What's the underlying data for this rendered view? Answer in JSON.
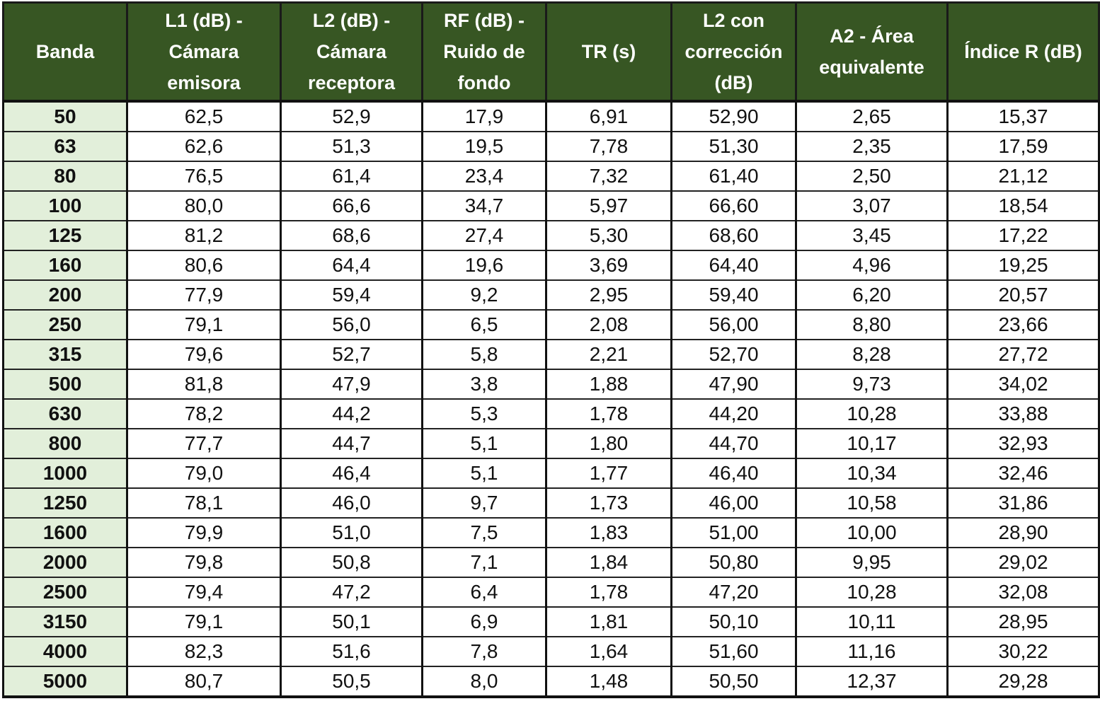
{
  "columns": [
    "Banda",
    "L1 (dB) -\nCámara\nemisora",
    "L2 (dB) -\nCámara\nreceptora",
    "RF (dB) -\nRuido de\nfondo",
    "TR (s)",
    "L2 con\ncorrección\n(dB)",
    "A2 - Área\nequivalente",
    "Índice R (dB)"
  ],
  "rows": [
    [
      "50",
      "62,5",
      "52,9",
      "17,9",
      "6,91",
      "52,90",
      "2,65",
      "15,37"
    ],
    [
      "63",
      "62,6",
      "51,3",
      "19,5",
      "7,78",
      "51,30",
      "2,35",
      "17,59"
    ],
    [
      "80",
      "76,5",
      "61,4",
      "23,4",
      "7,32",
      "61,40",
      "2,50",
      "21,12"
    ],
    [
      "100",
      "80,0",
      "66,6",
      "34,7",
      "5,97",
      "66,60",
      "3,07",
      "18,54"
    ],
    [
      "125",
      "81,2",
      "68,6",
      "27,4",
      "5,30",
      "68,60",
      "3,45",
      "17,22"
    ],
    [
      "160",
      "80,6",
      "64,4",
      "19,6",
      "3,69",
      "64,40",
      "4,96",
      "19,25"
    ],
    [
      "200",
      "77,9",
      "59,4",
      "9,2",
      "2,95",
      "59,40",
      "6,20",
      "20,57"
    ],
    [
      "250",
      "79,1",
      "56,0",
      "6,5",
      "2,08",
      "56,00",
      "8,80",
      "23,66"
    ],
    [
      "315",
      "79,6",
      "52,7",
      "5,8",
      "2,21",
      "52,70",
      "8,28",
      "27,72"
    ],
    [
      "500",
      "81,8",
      "47,9",
      "3,8",
      "1,88",
      "47,90",
      "9,73",
      "34,02"
    ],
    [
      "630",
      "78,2",
      "44,2",
      "5,3",
      "1,78",
      "44,20",
      "10,28",
      "33,88"
    ],
    [
      "800",
      "77,7",
      "44,7",
      "5,1",
      "1,80",
      "44,70",
      "10,17",
      "32,93"
    ],
    [
      "1000",
      "79,0",
      "46,4",
      "5,1",
      "1,77",
      "46,40",
      "10,34",
      "32,46"
    ],
    [
      "1250",
      "78,1",
      "46,0",
      "9,7",
      "1,73",
      "46,00",
      "10,58",
      "31,86"
    ],
    [
      "1600",
      "79,9",
      "51,0",
      "7,5",
      "1,83",
      "51,00",
      "10,00",
      "28,90"
    ],
    [
      "2000",
      "79,8",
      "50,8",
      "7,1",
      "1,84",
      "50,80",
      "9,95",
      "29,02"
    ],
    [
      "2500",
      "79,4",
      "47,2",
      "6,4",
      "1,78",
      "47,20",
      "10,28",
      "32,08"
    ],
    [
      "3150",
      "79,1",
      "50,1",
      "6,9",
      "1,81",
      "50,10",
      "10,11",
      "28,95"
    ],
    [
      "4000",
      "82,3",
      "51,6",
      "7,8",
      "1,64",
      "51,60",
      "11,16",
      "30,22"
    ],
    [
      "5000",
      "80,7",
      "50,5",
      "8,0",
      "1,48",
      "50,50",
      "12,37",
      "29,28"
    ]
  ],
  "colors": {
    "header_bg": "#375623",
    "header_text": "#ffffff",
    "band_bg": "#e2efda"
  }
}
